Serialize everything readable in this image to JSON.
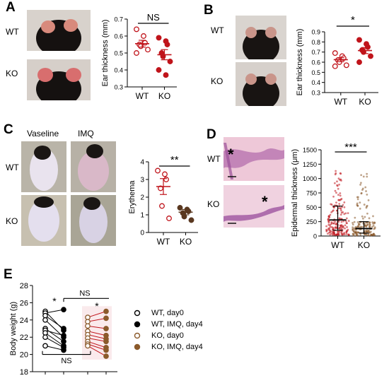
{
  "panels": {
    "A": {
      "label": "A",
      "row_labels": [
        "WT",
        "KO"
      ],
      "chart_data": {
        "type": "scatter",
        "ylabel": "Ear thickness (mm)",
        "categories": [
          "WT",
          "KO"
        ],
        "yticks": [
          "0.3",
          "0.4",
          "0.5",
          "0.6",
          "0.7"
        ],
        "ylim": [
          0.3,
          0.7
        ],
        "significance": "NS",
        "series": [
          {
            "category": "WT",
            "values": [
              0.64,
              0.6,
              0.56,
              0.55,
              0.54,
              0.52,
              0.5
            ],
            "mean": 0.555
          },
          {
            "category": "KO",
            "values": [
              0.59,
              0.57,
              0.55,
              0.5,
              0.48,
              0.45,
              0.4,
              0.37
            ],
            "mean": 0.49
          }
        ]
      }
    },
    "B": {
      "label": "B",
      "row_labels": [
        "WT",
        "KO"
      ],
      "chart_data": {
        "type": "scatter",
        "ylabel": "Ear thickness (mm)",
        "categories": [
          "WT",
          "KO"
        ],
        "yticks": [
          "0.3",
          "0.4",
          "0.5",
          "0.6",
          "0.7",
          "0.8",
          "0.9"
        ],
        "ylim": [
          0.3,
          0.9
        ],
        "significance": "*",
        "series": [
          {
            "category": "WT",
            "values": [
              0.69,
              0.66,
              0.64,
              0.62,
              0.6,
              0.57,
              0.56
            ],
            "mean": 0.625
          },
          {
            "category": "KO",
            "values": [
              0.82,
              0.78,
              0.75,
              0.72,
              0.7,
              0.66,
              0.6
            ],
            "mean": 0.715
          }
        ]
      }
    },
    "C": {
      "label": "C",
      "column_labels": [
        "Vaseline",
        "IMQ"
      ],
      "row_labels": [
        "WT",
        "KO"
      ],
      "chart_data": {
        "type": "scatter",
        "ylabel": "Erythema",
        "categories": [
          "WT",
          "KO"
        ],
        "yticks": [
          "0",
          "1",
          "2",
          "3",
          "4"
        ],
        "ylim": [
          0,
          4
        ],
        "significance": "**",
        "series": [
          {
            "category": "WT",
            "values": [
              3.5,
              3.3,
              3.0,
              2.5,
              1.5,
              0.8
            ],
            "mean": 2.6
          },
          {
            "category": "KO",
            "values": [
              1.4,
              1.3,
              1.2,
              1.1,
              0.9,
              0.7
            ],
            "mean": 1.15
          }
        ]
      }
    },
    "D": {
      "label": "D",
      "row_labels": [
        "WT",
        "KO"
      ],
      "asterisk": "*",
      "chart_data": {
        "type": "scatter",
        "ylabel": "Epidermal thickness (μm)",
        "categories": [
          "WT",
          "KO"
        ],
        "yticks": [
          "0",
          "250",
          "500",
          "750",
          "1000",
          "1250",
          "1500"
        ],
        "ylim": [
          0,
          1500
        ],
        "significance": "***",
        "summary": [
          {
            "category": "WT",
            "mean": 280,
            "sd_low": 100,
            "sd_high": 520
          },
          {
            "category": "KO",
            "mean": 130,
            "sd_low": 50,
            "sd_high": 250
          }
        ]
      }
    },
    "E": {
      "label": "E",
      "chart_data": {
        "type": "line",
        "ylabel": "Body weight (g)",
        "yticks": [
          "18",
          "20",
          "22",
          "24",
          "26",
          "28"
        ],
        "ylim": [
          18,
          28
        ],
        "significance": [
          "*",
          "*",
          "NS",
          "NS"
        ],
        "legend": [
          {
            "label": "WT, day0",
            "color": "#000000",
            "filled": false
          },
          {
            "label": "WT, IMQ, day4",
            "color": "#000000",
            "filled": true
          },
          {
            "label": "KO, day0",
            "color": "#8b5a2b",
            "filled": false
          },
          {
            "label": "KO, IMQ, day4",
            "color": "#8b5a2b",
            "filled": true
          }
        ],
        "series": [
          {
            "name": "WT",
            "pairs": [
              [
                25.0,
                22.8
              ],
              [
                24.8,
                25.2
              ],
              [
                24.5,
                23.0
              ],
              [
                24.0,
                22.0
              ],
              [
                23.0,
                21.5
              ],
              [
                22.8,
                22.2
              ],
              [
                22.5,
                21.0
              ],
              [
                22.0,
                20.8
              ],
              [
                21.0,
                20.5
              ]
            ]
          },
          {
            "name": "KO",
            "pairs": [
              [
                24.3,
                25.0
              ],
              [
                23.8,
                24.2
              ],
              [
                23.3,
                23.0
              ],
              [
                22.7,
                22.2
              ],
              [
                22.3,
                21.8
              ],
              [
                21.9,
                21.5
              ],
              [
                21.5,
                20.8
              ],
              [
                21.2,
                20.5
              ],
              [
                21.0,
                19.8
              ]
            ]
          }
        ]
      }
    }
  },
  "colors": {
    "wt": "#000000",
    "ko_red": "#c0141b",
    "ko_brown": "#8b5a2b",
    "wt_open": "#c0141b",
    "he_pink": "#e8a9c8"
  }
}
